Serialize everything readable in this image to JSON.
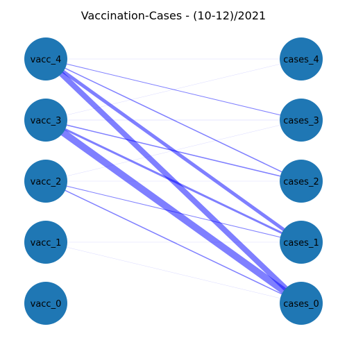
{
  "title": "Vaccination-Cases - (10-12)/2021",
  "colors": {
    "node": "#1f77b4",
    "edge": "#0000ff",
    "background": "#ffffff"
  },
  "left_nodes": [
    "vacc_4",
    "vacc_3",
    "vacc_2",
    "vacc_1",
    "vacc_0"
  ],
  "right_nodes": [
    "cases_4",
    "cases_3",
    "cases_2",
    "cases_1",
    "cases_0"
  ],
  "edges": [
    {
      "from": "vacc_4",
      "to": "cases_0",
      "weight": 8
    },
    {
      "from": "vacc_4",
      "to": "cases_1",
      "weight": 5
    },
    {
      "from": "vacc_4",
      "to": "cases_2",
      "weight": 1.5
    },
    {
      "from": "vacc_4",
      "to": "cases_3",
      "weight": 1
    },
    {
      "from": "vacc_4",
      "to": "cases_4",
      "weight": 0.3
    },
    {
      "from": "vacc_3",
      "to": "cases_0",
      "weight": 10
    },
    {
      "from": "vacc_3",
      "to": "cases_1",
      "weight": 3
    },
    {
      "from": "vacc_3",
      "to": "cases_2",
      "weight": 1.5
    },
    {
      "from": "vacc_3",
      "to": "cases_3",
      "weight": 0.4
    },
    {
      "from": "vacc_3",
      "to": "cases_4",
      "weight": 0.1
    },
    {
      "from": "vacc_2",
      "to": "cases_0",
      "weight": 1.5
    },
    {
      "from": "vacc_2",
      "to": "cases_1",
      "weight": 1
    },
    {
      "from": "vacc_2",
      "to": "cases_2",
      "weight": 0.2
    },
    {
      "from": "vacc_2",
      "to": "cases_3",
      "weight": 0.2
    },
    {
      "from": "vacc_1",
      "to": "cases_0",
      "weight": 0.3
    },
    {
      "from": "vacc_1",
      "to": "cases_1",
      "weight": 0.1
    }
  ]
}
